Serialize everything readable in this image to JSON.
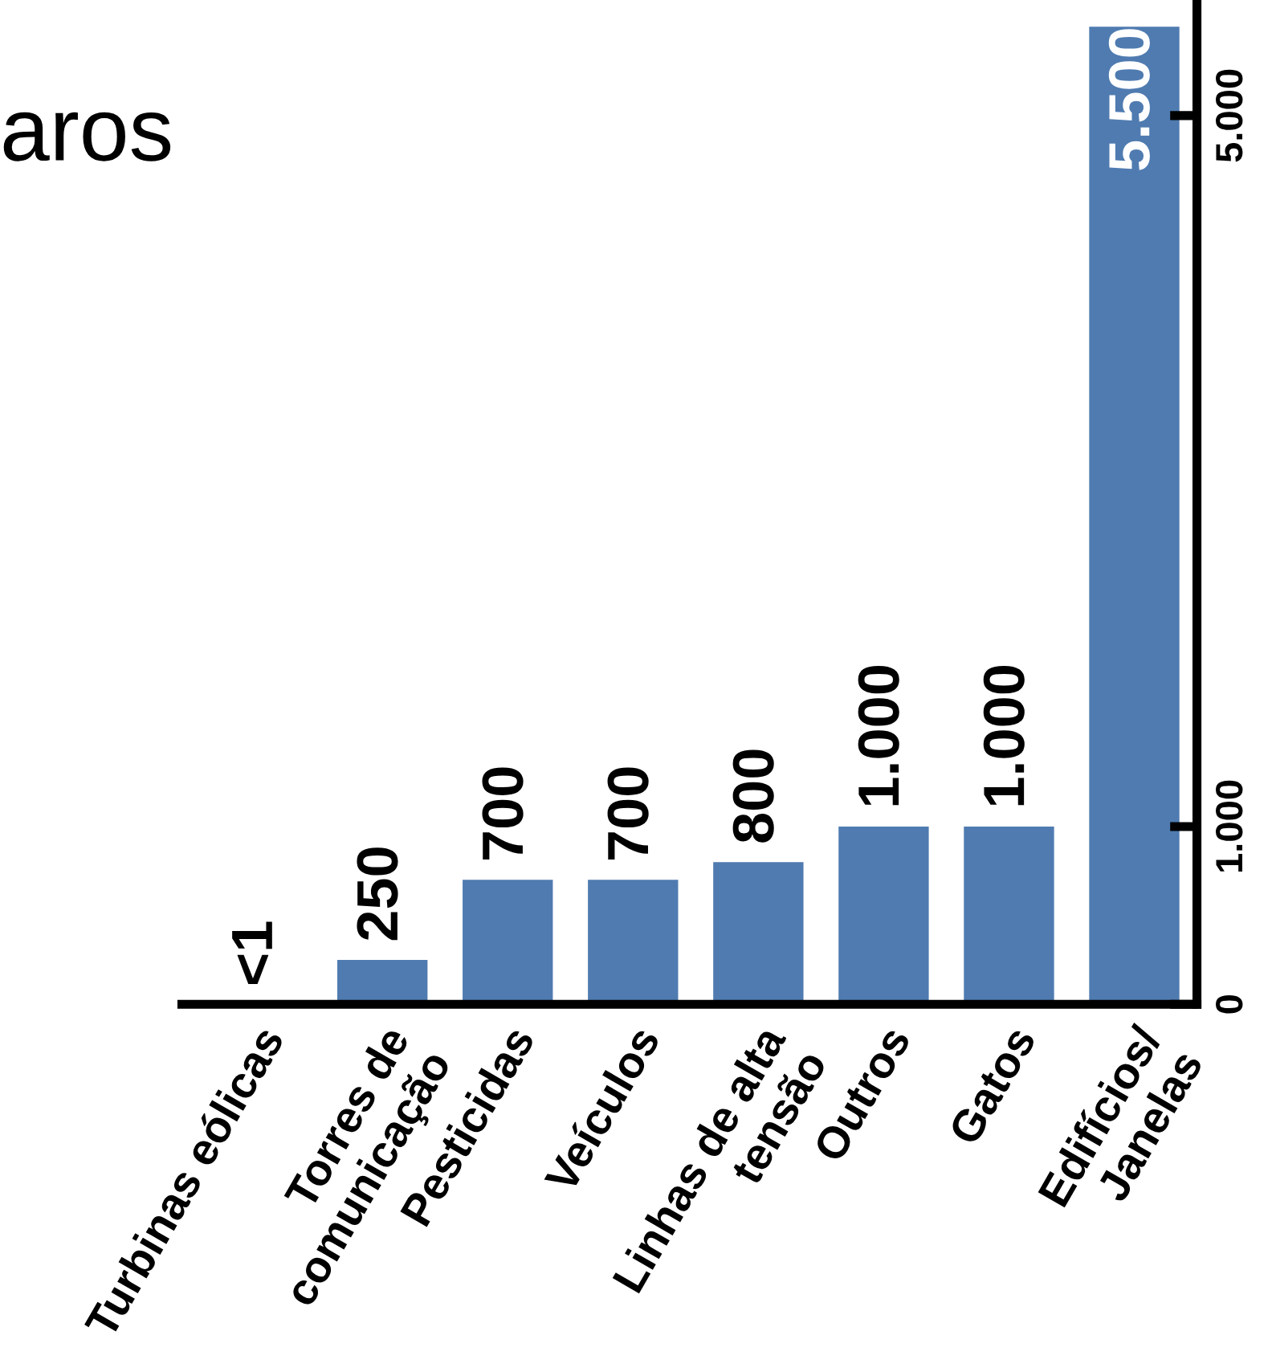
{
  "chart_data": {
    "type": "bar",
    "title": "aros",
    "categories": [
      "Turbinas eólicas",
      "Torres de\ncomunicação",
      "Pesticidas",
      "Veículos",
      "Linhas de alta\ntensão",
      "Outros",
      "Gatos",
      "Edifícios/\nJanelas"
    ],
    "values": [
      0.5,
      250,
      700,
      700,
      800,
      1000,
      1000,
      5500
    ],
    "value_labels": [
      "<1",
      "250",
      "700",
      "700",
      "800",
      "1.000",
      "1.000",
      "5.500"
    ],
    "color": "#4f7bb0",
    "ylim": [
      0,
      5650
    ],
    "yticks": [
      0,
      {
        "value": 1000,
        "label": "1.000"
      },
      {
        "value": 5000,
        "label": "5.000"
      }
    ],
    "grid": false,
    "legend": false
  }
}
